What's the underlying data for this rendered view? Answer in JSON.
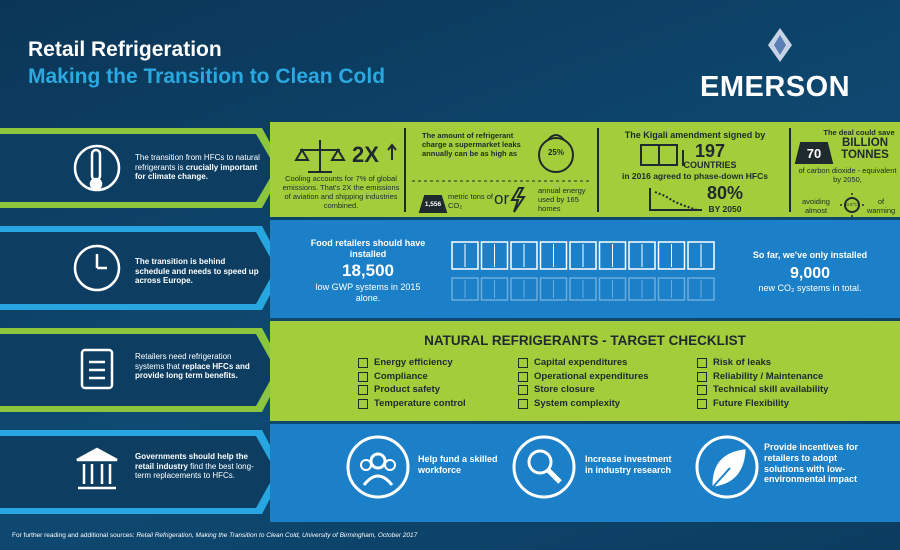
{
  "header": {
    "title": "Retail Refrigeration",
    "subtitle": "Making the Transition to Clean Cold",
    "logo": "EMERSON"
  },
  "rows": [
    {
      "text": "The transition from HFCs to natural refrigerants is",
      "bold": "crucially important for climate change."
    },
    {
      "bold": "The transition is behind schedule and needs to speed up across Europe."
    },
    {
      "text": "Retailers need refrigeration systems that",
      "bold": "replace HFCs and provide long term benefits."
    },
    {
      "bold": "Governments should help the retail industry",
      "text": "find the best long-term replacements to HFCs."
    }
  ],
  "emissions": {
    "figure": "2X",
    "text": "Cooling accounts for 7% of global emissions. That's 2X the emissions of aviation and shipping industries combined."
  },
  "leaks": {
    "text": "The amount of refrigerant charge a supermarket leaks annually can be as high as",
    "percent": "25%",
    "tons": "1,556",
    "tons_label": "metric tons of CO₂",
    "or": "or",
    "energy": "annual energy used by 165 homes"
  },
  "kigali": {
    "text": "The Kigali amendment signed by",
    "countries": "197",
    "countries_label": "COUNTRIES",
    "agreement": "in 2016 agreed to phase-down HFCs",
    "cut": "80%",
    "cut_label": "BY 2050"
  },
  "savings": {
    "text": "The deal could save",
    "amount": "70",
    "unit": "BILLION TONNES",
    "detail": "of carbon dioxide - equivalent by 2050,",
    "avoid": "avoiding almost",
    "degrees": "0.5°C",
    "warming": "of warming"
  },
  "installs": {
    "target_text": "Food retailers should have installed",
    "target": "18,500",
    "target_label": "low GWP systems in 2015 alone.",
    "actual_text": "So far, we've only installed",
    "actual": "9,000",
    "actual_label": "new CO₂ systems in total."
  },
  "checklist": {
    "title": "NATURAL REFRIGERANTS - TARGET CHECKLIST",
    "columns": [
      [
        "Energy efficiency",
        "Compliance",
        "Product safety",
        "Temperature control"
      ],
      [
        "Capital expenditures",
        "Operational expenditures",
        "Store closure",
        "System complexity"
      ],
      [
        "Risk of leaks",
        "Reliability / Maintenance",
        "Technical skill availability",
        "Future Flexibility"
      ]
    ]
  },
  "actions": [
    "Help fund a skilled workforce",
    "Increase investment in industry research",
    "Provide incentives for retailers to adopt solutions with low-environmental impact"
  ],
  "footer": {
    "text": "For further reading and additional sources:",
    "source": "Retail Refrigeration, Making the Transition to Clean Cold, University of Birmingham, October 2017"
  }
}
